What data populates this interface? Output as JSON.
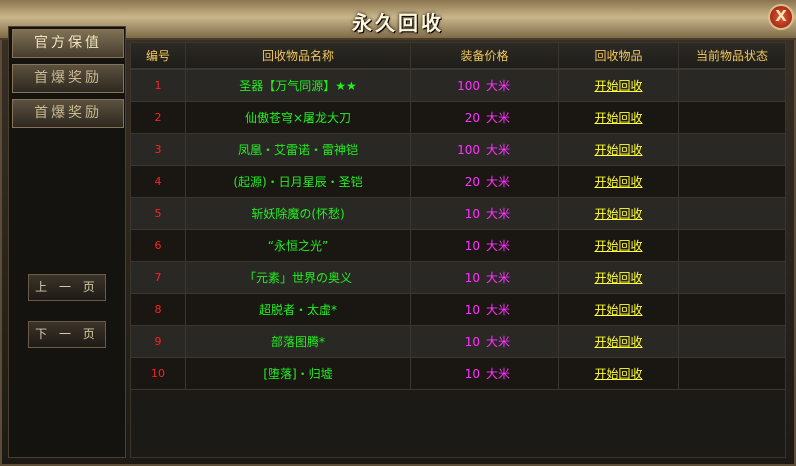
{
  "title": "永久回收",
  "close_label": "X",
  "sidebar": {
    "items": [
      {
        "label": "官方保值",
        "active": true
      },
      {
        "label": "首爆奖励"
      },
      {
        "label": "首爆奖励"
      }
    ]
  },
  "pager": {
    "prev": "上 一 页",
    "next": "下 一 页"
  },
  "table": {
    "headers": [
      "编号",
      "回收物品名称",
      "装备价格",
      "回收物品",
      "当前物品状态"
    ],
    "rows": [
      {
        "id": "1",
        "name": "圣器【万气同源】★★",
        "price": "100",
        "unit": "大米",
        "action": "开始回收",
        "status": ""
      },
      {
        "id": "2",
        "name": "仙傲苍穹×屠龙大刀",
        "price": "20",
        "unit": "大米",
        "action": "开始回收",
        "status": ""
      },
      {
        "id": "3",
        "name": "凤凰・艾雷诺・雷神铠",
        "price": "100",
        "unit": "大米",
        "action": "开始回收",
        "status": ""
      },
      {
        "id": "4",
        "name": "(起源)・日月星辰・圣铠",
        "price": "20",
        "unit": "大米",
        "action": "开始回收",
        "status": ""
      },
      {
        "id": "5",
        "name": "斩妖除魔の(怀愁)",
        "price": "10",
        "unit": "大米",
        "action": "开始回收",
        "status": ""
      },
      {
        "id": "6",
        "name": "“永恒之光”",
        "price": "10",
        "unit": "大米",
        "action": "开始回收",
        "status": ""
      },
      {
        "id": "7",
        "name": "「元素」世界の奥义",
        "price": "10",
        "unit": "大米",
        "action": "开始回收",
        "status": ""
      },
      {
        "id": "8",
        "name": "超脱者・太虚*",
        "price": "10",
        "unit": "大米",
        "action": "开始回收",
        "status": ""
      },
      {
        "id": "9",
        "name": "部落图腾*",
        "price": "10",
        "unit": "大米",
        "action": "开始回收",
        "status": ""
      },
      {
        "id": "10",
        "name": "[堕落]・归墟",
        "price": "10",
        "unit": "大米",
        "action": "开始回收",
        "status": ""
      }
    ]
  }
}
